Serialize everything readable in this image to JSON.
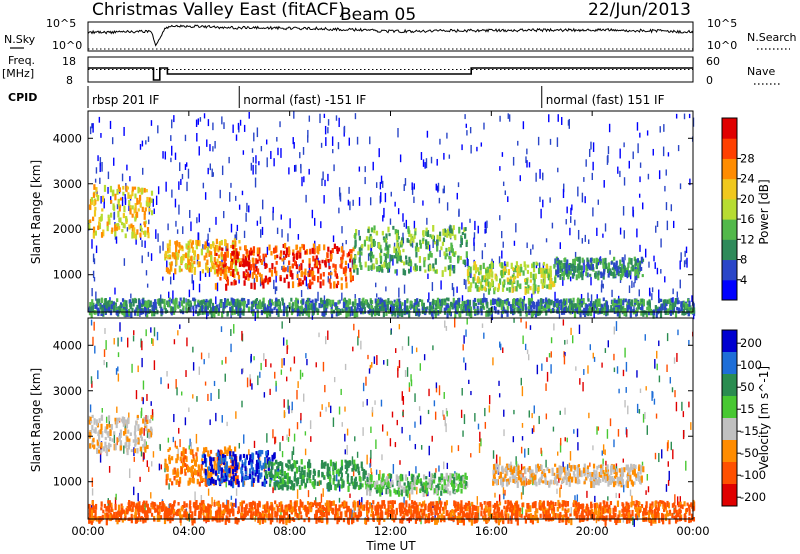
{
  "header": {
    "station": "Christmas Valley East (fitACF)",
    "beam": "Beam 05",
    "date": "22/Jun/2013"
  },
  "strip_labels": {
    "nsky": "N.Sky",
    "nsky_ticks": [
      "10^5",
      "10^0"
    ],
    "nsearch": "N.Search",
    "nsearch_ticks": [
      "10^5",
      "10^0"
    ],
    "freq": "Freq.",
    "freq_unit": "[MHz]",
    "freq_ticks": [
      "18",
      "8"
    ],
    "nave": "Nave",
    "nave_ticks": [
      "60",
      "0"
    ],
    "cpid": "CPID"
  },
  "cpid_segments": [
    {
      "label": "rbsp 201 IF",
      "start_h": 0.0
    },
    {
      "label": "normal (fast) -151 IF",
      "start_h": 6.0
    },
    {
      "label": "normal (fast) 151 IF",
      "start_h": 18.0
    }
  ],
  "time_axis": {
    "label": "Time UT",
    "ticks": [
      "00:00",
      "04:00",
      "08:00",
      "12:00",
      "16:00",
      "20:00",
      "00:00"
    ],
    "range_h": [
      0,
      24
    ]
  },
  "power_colorbar": {
    "label": "Power [dB]",
    "ticks": [
      "4",
      "8",
      "12",
      "16",
      "20",
      "24",
      "28"
    ],
    "colors": [
      "#0000ff",
      "#2a46c8",
      "#2f8a5a",
      "#52b84a",
      "#b7dc32",
      "#f0c81e",
      "#ff8c00",
      "#ff4000",
      "#e00000"
    ]
  },
  "velocity_colorbar": {
    "label": "Velocity [m s^-1]",
    "ticks": [
      "200",
      "100",
      "50",
      "15",
      "-15",
      "-50",
      "-100",
      "-200"
    ],
    "colors": [
      "#0000d0",
      "#1e6ed8",
      "#2a8c50",
      "#48c832",
      "#c0c0c0",
      "#ff8c00",
      "#ff5000",
      "#e00000"
    ]
  },
  "chart_data": [
    {
      "type": "line",
      "title": "",
      "xlabel": "",
      "ylabel": "",
      "series": [
        {
          "name": "N.Sky",
          "x_h": [
            0,
            2.5,
            2.7,
            3.0,
            3.2,
            4,
            6,
            9,
            12,
            15,
            18,
            21,
            24
          ],
          "values_log10": [
            3.2,
            3.4,
            1.0,
            3.6,
            4.2,
            4.3,
            4.0,
            3.9,
            3.4,
            3.5,
            3.6,
            3.6,
            3.3
          ]
        },
        {
          "name": "N.Search",
          "x_h": [
            0,
            24
          ],
          "values_log10": [
            0,
            0
          ]
        }
      ]
    },
    {
      "type": "line",
      "series": [
        {
          "name": "Freq.",
          "x_h": [
            0,
            2.6,
            2.6,
            2.85,
            2.85,
            3.15,
            3.15,
            15.2,
            15.2,
            24
          ],
          "values_mhz": [
            14,
            14,
            8,
            8,
            14,
            14,
            11,
            11,
            14,
            14
          ]
        },
        {
          "name": "Nave",
          "x_h": [
            0,
            24
          ],
          "values": [
            30,
            30
          ]
        }
      ]
    },
    {
      "type": "heatmap",
      "ylabel": "Slant Range [km]",
      "xlabel": "",
      "ylim": [
        180,
        4600
      ],
      "yticks": [
        1000,
        2000,
        3000,
        4000
      ],
      "xlim_h": [
        0,
        24
      ],
      "quantity": "Power [dB]",
      "bands": [
        {
          "t0": 0.0,
          "t1": 2.5,
          "r0": 1900,
          "r1": 3000,
          "level": 5
        },
        {
          "t0": 3.0,
          "t1": 6.0,
          "r0": 1100,
          "r1": 1800,
          "level": 5
        },
        {
          "t0": 5.0,
          "t1": 10.5,
          "r0": 800,
          "r1": 1700,
          "level": 7
        },
        {
          "t0": 10.5,
          "t1": 15.0,
          "r0": 1100,
          "r1": 2100,
          "level": 3
        },
        {
          "t0": 15.0,
          "t1": 18.5,
          "r0": 700,
          "r1": 1300,
          "level": 4
        },
        {
          "t0": 18.5,
          "t1": 22.0,
          "r0": 1000,
          "r1": 1400,
          "level": 2
        },
        {
          "t0": 0.0,
          "t1": 24.0,
          "r0": 180,
          "r1": 500,
          "level": 2
        }
      ]
    },
    {
      "type": "heatmap",
      "ylabel": "Slant Range [km]",
      "xlabel": "Time UT",
      "ylim": [
        180,
        4600
      ],
      "yticks": [
        1000,
        2000,
        3000,
        4000
      ],
      "xlim_h": [
        0,
        24
      ],
      "quantity": "Velocity [m s^-1]",
      "bands": [
        {
          "t0": 0.0,
          "t1": 2.5,
          "r0": 1700,
          "r1": 2500,
          "v": -10
        },
        {
          "t0": 3.0,
          "t1": 6.0,
          "r0": 1000,
          "r1": 1800,
          "v": -40
        },
        {
          "t0": 4.5,
          "t1": 7.5,
          "r0": 1000,
          "r1": 1700,
          "v": 150
        },
        {
          "t0": 7.0,
          "t1": 11.0,
          "r0": 900,
          "r1": 1500,
          "v": 40
        },
        {
          "t0": 11.0,
          "t1": 15.0,
          "r0": 800,
          "r1": 1200,
          "v": 20
        },
        {
          "t0": 16.0,
          "t1": 22.0,
          "r0": 1000,
          "r1": 1400,
          "v": -10
        },
        {
          "t0": 0.0,
          "t1": 24.0,
          "r0": 180,
          "r1": 600,
          "v": -60
        }
      ]
    }
  ]
}
